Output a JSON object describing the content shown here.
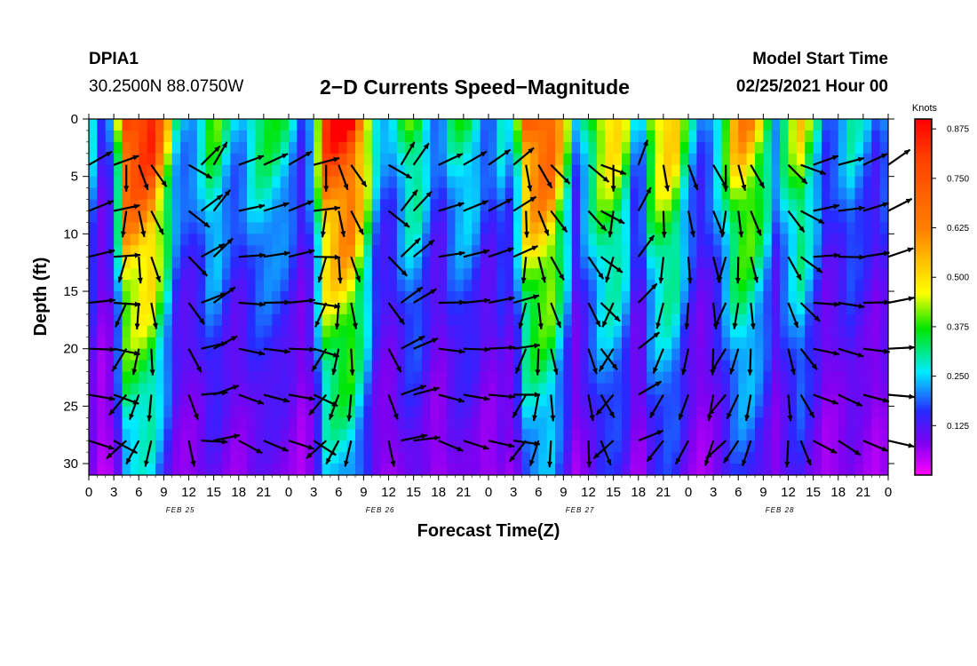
{
  "header": {
    "station_id": "DPIA1",
    "coordinates": "30.2500N 88.0750W",
    "title": "2−D Currents Speed−Magnitude",
    "model_label": "Model Start Time",
    "model_time": "02/25/2021 Hour 00"
  },
  "chart_data": {
    "type": "heatmap",
    "title": "2-D Currents Speed-Magnitude",
    "xlabel": "Forecast Time(Z)",
    "ylabel": "Depth (ft)",
    "x_ticks": [
      "0",
      "3",
      "6",
      "9",
      "12",
      "15",
      "18",
      "21",
      "0",
      "3",
      "6",
      "9",
      "12",
      "15",
      "18",
      "21",
      "0",
      "3",
      "6",
      "9",
      "12",
      "15",
      "18",
      "21",
      "0",
      "3",
      "6",
      "9",
      "12",
      "15",
      "18",
      "21",
      "0"
    ],
    "date_labels": [
      "FEB 25",
      "FEB 26",
      "FEB 27",
      "FEB 28"
    ],
    "x_range_hours": [
      0,
      96
    ],
    "y_ticks": [
      0,
      5,
      10,
      15,
      20,
      25,
      30
    ],
    "ylim": [
      0,
      31
    ],
    "colorbar": {
      "unit": "Knots",
      "ticks": [
        "0.125",
        "0.250",
        "0.375",
        "0.500",
        "0.625",
        "0.750",
        "0.875"
      ],
      "range": [
        0,
        0.9
      ]
    },
    "speed_profile": {
      "hours": [
        0,
        1.5,
        3,
        4.5,
        6,
        7.5,
        9,
        10.5,
        12,
        13.5,
        15,
        16.5,
        18,
        19.5,
        21,
        22.5,
        24,
        25.5,
        27,
        28.5,
        30,
        31.5,
        33,
        34.5,
        36,
        37.5,
        39,
        40.5,
        42,
        43.5,
        45,
        46.5,
        48,
        49.5,
        51,
        52.5,
        54,
        55.5,
        57,
        58.5,
        60,
        61.5,
        63,
        64.5,
        66,
        67.5,
        69,
        70.5,
        72,
        73.5,
        75,
        76.5,
        78,
        79.5,
        81,
        82.5,
        84,
        85.5,
        87,
        88.5,
        90,
        91.5,
        93,
        94.5,
        96
      ],
      "surface_knots": [
        0.33,
        0.15,
        0.22,
        0.86,
        0.9,
        0.86,
        0.6,
        0.3,
        0.22,
        0.3,
        0.42,
        0.3,
        0.22,
        0.32,
        0.37,
        0.34,
        0.3,
        0.18,
        0.28,
        0.83,
        0.9,
        0.88,
        0.62,
        0.3,
        0.2,
        0.32,
        0.43,
        0.3,
        0.17,
        0.3,
        0.36,
        0.3,
        0.18,
        0.28,
        0.22,
        0.7,
        0.8,
        0.76,
        0.5,
        0.22,
        0.35,
        0.5,
        0.55,
        0.42,
        0.15,
        0.45,
        0.58,
        0.52,
        0.3,
        0.2,
        0.25,
        0.42,
        0.62,
        0.58,
        0.45,
        0.25,
        0.4,
        0.5,
        0.35,
        0.2,
        0.22,
        0.3,
        0.25,
        0.18,
        0.25
      ]
    },
    "depth_decay_scale_ft": 24,
    "arrow_grid": {
      "hours": [
        0,
        3,
        4.5,
        6,
        7.5,
        12,
        13.5,
        15,
        18,
        21,
        24,
        27,
        28.5,
        30,
        31.5,
        36,
        37.5,
        39,
        42,
        45,
        48,
        51,
        52.5,
        54,
        55.5,
        60,
        61.5,
        63,
        66,
        69,
        72,
        75,
        76.5,
        78,
        79.5,
        84,
        85.5,
        87,
        90,
        93,
        96
      ],
      "depths_ft": [
        4,
        8,
        12,
        16,
        20,
        24,
        28
      ],
      "flow_deg": [
        30,
        20,
        -90,
        -70,
        -55,
        -30,
        45,
        60,
        20,
        25,
        30,
        15,
        -90,
        -70,
        -55,
        -30,
        60,
        55,
        25,
        30,
        35,
        40,
        -80,
        -60,
        -45,
        -40,
        -20,
        -90,
        70,
        -80,
        -70,
        -60,
        -90,
        -75,
        -60,
        -45,
        -20,
        20,
        15,
        25,
        35
      ],
      "rotation_per_depth_deg": 8
    }
  }
}
